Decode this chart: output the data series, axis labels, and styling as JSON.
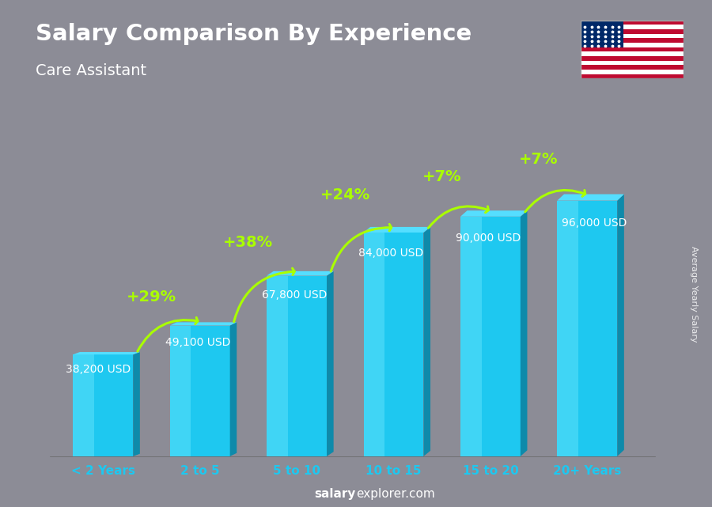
{
  "categories": [
    "< 2 Years",
    "2 to 5",
    "5 to 10",
    "10 to 15",
    "15 to 20",
    "20+ Years"
  ],
  "values": [
    38200,
    49100,
    67800,
    84000,
    90000,
    96000
  ],
  "labels": [
    "38,200 USD",
    "49,100 USD",
    "67,800 USD",
    "84,000 USD",
    "90,000 USD",
    "96,000 USD"
  ],
  "pct_changes": [
    null,
    "+29%",
    "+38%",
    "+24%",
    "+7%",
    "+7%"
  ],
  "bar_face_color": "#1EC8F0",
  "bar_right_color": "#0E8AAA",
  "bar_top_color": "#55DEFF",
  "bar_highlight_color": "#80EEFF",
  "title": "Salary Comparison By Experience",
  "subtitle": "Care Assistant",
  "ylabel": "Average Yearly Salary",
  "footer_bold": "salary",
  "footer_rest": "explorer.com",
  "text_color": "#ffffff",
  "pct_color": "#aaff00",
  "label_color": "#ffffff",
  "xlabel_color": "#1EC8F0",
  "ylim": [
    0,
    118000
  ],
  "bar_width": 0.62,
  "bg_overlay_color": "#1a1a2e",
  "bg_overlay_alpha": 0.45
}
